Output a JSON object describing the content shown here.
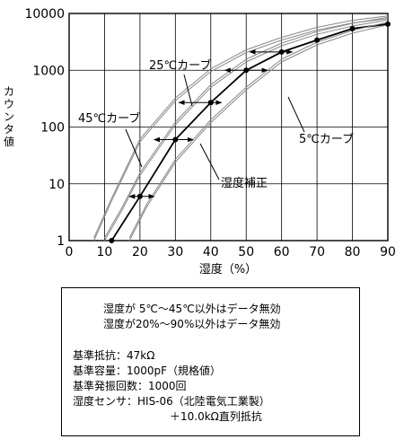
{
  "chart_data": {
    "type": "line",
    "xlabel": "湿度（%）",
    "ylabel": "カウンタ値",
    "xlim": [
      0,
      90
    ],
    "ylim": [
      1,
      10000
    ],
    "y_scale": "log",
    "x_ticks": [
      "0",
      "10",
      "20",
      "30",
      "40",
      "50",
      "60",
      "70",
      "80",
      "90"
    ],
    "y_ticks": [
      "1",
      "10",
      "100",
      "1000",
      "10000"
    ],
    "grid": true,
    "series": [
      {
        "name": "湿度補正",
        "role": "compensated",
        "x": [
          12,
          20,
          30,
          40,
          50,
          60,
          70,
          80,
          90
        ],
        "y": [
          1,
          6,
          60,
          270,
          1000,
          2100,
          3400,
          5400,
          6500
        ],
        "markers": true
      },
      {
        "name": "45℃カーブ",
        "role": "upper",
        "x": [
          7,
          12,
          20,
          30,
          40,
          50,
          60,
          70,
          80,
          90
        ],
        "y": [
          1,
          5,
          55,
          290,
          950,
          2050,
          3400,
          5100,
          6800,
          8100
        ],
        "markers": false
      },
      {
        "name": "25℃カーブ",
        "role": "middle",
        "x": [
          10,
          15,
          20,
          30,
          40,
          50,
          60,
          70,
          80,
          90
        ],
        "y": [
          1,
          3.5,
          14,
          110,
          500,
          1400,
          2700,
          4300,
          6000,
          7700
        ],
        "markers": false
      },
      {
        "name": "5℃カーブ",
        "role": "lower",
        "x": [
          17,
          22,
          30,
          40,
          50,
          60,
          70,
          80,
          90
        ],
        "y": [
          1,
          4,
          24,
          120,
          450,
          1400,
          2800,
          4500,
          6300
        ],
        "markers": false
      }
    ],
    "correction_arrows": [
      {
        "y": 6,
        "x1": 17,
        "x2": 24
      },
      {
        "y": 60,
        "x1": 24,
        "x2": 35
      },
      {
        "y": 270,
        "x1": 31,
        "x2": 43
      },
      {
        "y": 1000,
        "x1": 44,
        "x2": 56
      },
      {
        "y": 2100,
        "x1": 51,
        "x2": 63
      }
    ],
    "annotations": [
      "25℃カーブ",
      "45℃カーブ",
      "5℃カーブ",
      "湿度補正"
    ]
  },
  "notes": {
    "line1": "湿度が 5℃～45℃以外はデータ無効",
    "line2": "湿度が20%～90%以外はデータ無効",
    "line3": "基準抵抗：47kΩ",
    "line4": "基準容量：1000pF（規格値）",
    "line5": "基準発振回数：1000回",
    "line6": "湿度センサ：HIS-06（北陸電気工業製）",
    "line7": "＋10.0kΩ直列抵抗"
  },
  "colors": {
    "curves": "#888888",
    "main": "#000000",
    "grid": "#000000"
  }
}
